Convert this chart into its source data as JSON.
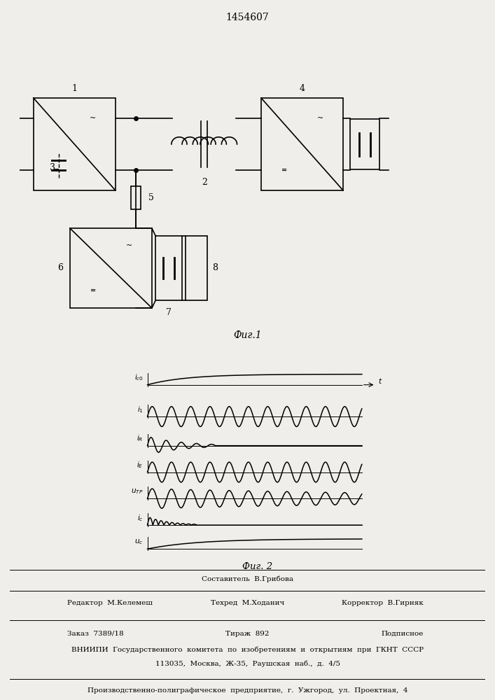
{
  "title_patent": "1454607",
  "fig1_caption": "Фиг.1",
  "fig2_caption": "Фиг. 2",
  "bg_color": "#f0eeea",
  "line_color": "#000000",
  "footer_sestavitel": "Составитель  В.Грибова",
  "footer_editor": "Редактор  М.Келемеш",
  "footer_tehred": "Техред  М.Ходанич",
  "footer_korrektor": "Корректор  В.Гирняк",
  "footer_zakaz": "Заказ  7389/18",
  "footer_tirazh": "Тираж  892",
  "footer_podpisnoe": "Подписное",
  "footer_vniip1": "ВНИИПИ  Государственного  комитета  по  изобретениям  и  открытиям  при  ГКНТ  СССР",
  "footer_vniip2": "113035,  Москва,  Ж-35,  Раушская  наб.,  д.  4/5",
  "footer_proizv": "Производственно-полиграфическое  предприятие,  г.  Ужгород,  ул.  Проектная,  4"
}
